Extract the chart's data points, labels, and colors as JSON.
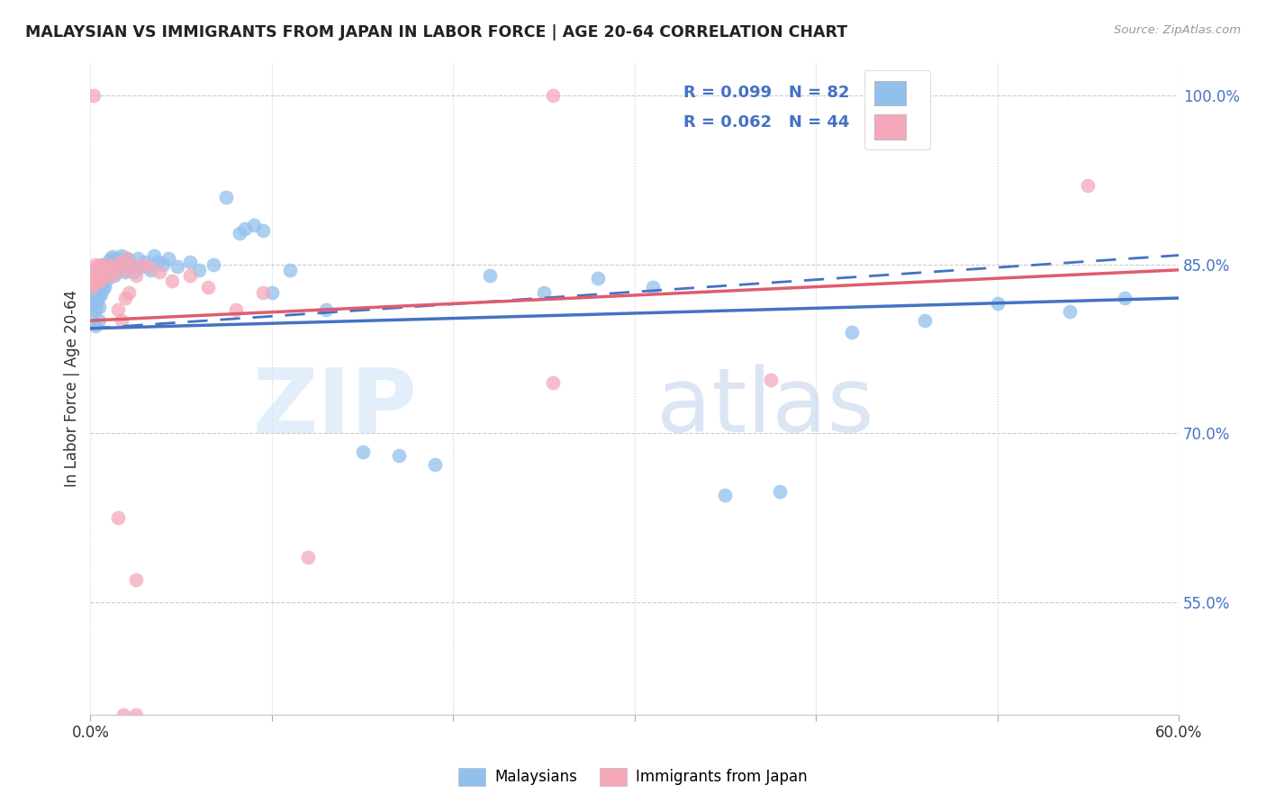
{
  "title": "MALAYSIAN VS IMMIGRANTS FROM JAPAN IN LABOR FORCE | AGE 20-64 CORRELATION CHART",
  "source": "Source: ZipAtlas.com",
  "ylabel": "In Labor Force | Age 20-64",
  "legend_label1": "Malaysians",
  "legend_label2": "Immigrants from Japan",
  "R1": 0.099,
  "N1": 82,
  "R2": 0.062,
  "N2": 44,
  "color_blue": "#92C0EC",
  "color_pink": "#F4A8BA",
  "color_blue_line": "#4472C4",
  "color_pink_line": "#E05C6E",
  "xlim": [
    0.0,
    0.6
  ],
  "ylim": [
    0.45,
    1.03
  ],
  "yticks": [
    0.55,
    0.7,
    0.85,
    1.0
  ],
  "ytick_labels": [
    "55.0%",
    "70.0%",
    "85.0%",
    "100.0%"
  ],
  "xtick_labels": [
    "0.0%",
    "",
    "",
    "",
    "",
    "",
    "60.0%"
  ],
  "background_color": "#FFFFFF",
  "grid_color": "#CCCCCC",
  "blue_scatter_x": [
    0.001,
    0.001,
    0.001,
    0.002,
    0.002,
    0.002,
    0.002,
    0.003,
    0.003,
    0.003,
    0.003,
    0.003,
    0.004,
    0.004,
    0.004,
    0.005,
    0.005,
    0.005,
    0.005,
    0.005,
    0.006,
    0.006,
    0.006,
    0.007,
    0.007,
    0.007,
    0.008,
    0.008,
    0.008,
    0.009,
    0.009,
    0.01,
    0.01,
    0.011,
    0.011,
    0.012,
    0.012,
    0.013,
    0.013,
    0.014,
    0.015,
    0.016,
    0.017,
    0.018,
    0.019,
    0.02,
    0.022,
    0.024,
    0.026,
    0.028,
    0.03,
    0.033,
    0.035,
    0.037,
    0.04,
    0.043,
    0.048,
    0.055,
    0.06,
    0.068,
    0.075,
    0.082,
    0.09,
    0.1,
    0.11,
    0.13,
    0.15,
    0.17,
    0.19,
    0.22,
    0.25,
    0.28,
    0.31,
    0.35,
    0.38,
    0.42,
    0.46,
    0.5,
    0.54,
    0.57,
    0.085,
    0.095
  ],
  "blue_scatter_y": [
    0.83,
    0.82,
    0.81,
    0.835,
    0.825,
    0.815,
    0.8,
    0.84,
    0.83,
    0.82,
    0.81,
    0.795,
    0.838,
    0.828,
    0.817,
    0.842,
    0.832,
    0.822,
    0.812,
    0.8,
    0.845,
    0.835,
    0.823,
    0.848,
    0.838,
    0.828,
    0.85,
    0.84,
    0.83,
    0.845,
    0.835,
    0.852,
    0.842,
    0.855,
    0.843,
    0.857,
    0.845,
    0.852,
    0.84,
    0.848,
    0.855,
    0.848,
    0.858,
    0.85,
    0.843,
    0.855,
    0.85,
    0.843,
    0.855,
    0.848,
    0.852,
    0.845,
    0.858,
    0.852,
    0.85,
    0.855,
    0.848,
    0.852,
    0.845,
    0.85,
    0.91,
    0.878,
    0.885,
    0.825,
    0.845,
    0.81,
    0.683,
    0.68,
    0.672,
    0.84,
    0.825,
    0.838,
    0.83,
    0.645,
    0.648,
    0.79,
    0.8,
    0.815,
    0.808,
    0.82,
    0.882,
    0.88
  ],
  "pink_scatter_x": [
    0.001,
    0.001,
    0.002,
    0.002,
    0.003,
    0.003,
    0.004,
    0.004,
    0.005,
    0.005,
    0.006,
    0.006,
    0.007,
    0.007,
    0.008,
    0.009,
    0.01,
    0.011,
    0.012,
    0.014,
    0.016,
    0.018,
    0.02,
    0.022,
    0.025,
    0.028,
    0.032,
    0.038,
    0.045,
    0.055,
    0.065,
    0.08,
    0.095,
    0.12,
    0.015,
    0.017,
    0.019,
    0.021,
    0.255,
    0.375,
    0.015,
    0.025,
    0.55,
    0.002
  ],
  "pink_scatter_y": [
    0.84,
    0.83,
    0.845,
    0.835,
    0.85,
    0.84,
    0.848,
    0.835,
    0.845,
    0.835,
    0.85,
    0.84,
    0.848,
    0.838,
    0.845,
    0.842,
    0.85,
    0.845,
    0.84,
    0.848,
    0.852,
    0.845,
    0.855,
    0.848,
    0.84,
    0.85,
    0.848,
    0.843,
    0.835,
    0.84,
    0.83,
    0.81,
    0.825,
    0.59,
    0.81,
    0.8,
    0.82,
    0.825,
    0.745,
    0.747,
    0.625,
    0.57,
    0.92,
    1.0
  ],
  "blue_line_x0": 0.0,
  "blue_line_x1": 0.6,
  "blue_line_y0": 0.793,
  "blue_line_y1": 0.82,
  "blue_dashed_line_y0": 0.793,
  "blue_dashed_line_y1": 0.858,
  "pink_line_y0": 0.8,
  "pink_line_y1": 0.845,
  "watermark_zip_color": "#C8D8F0",
  "watermark_atlas_color": "#A8C0E0"
}
